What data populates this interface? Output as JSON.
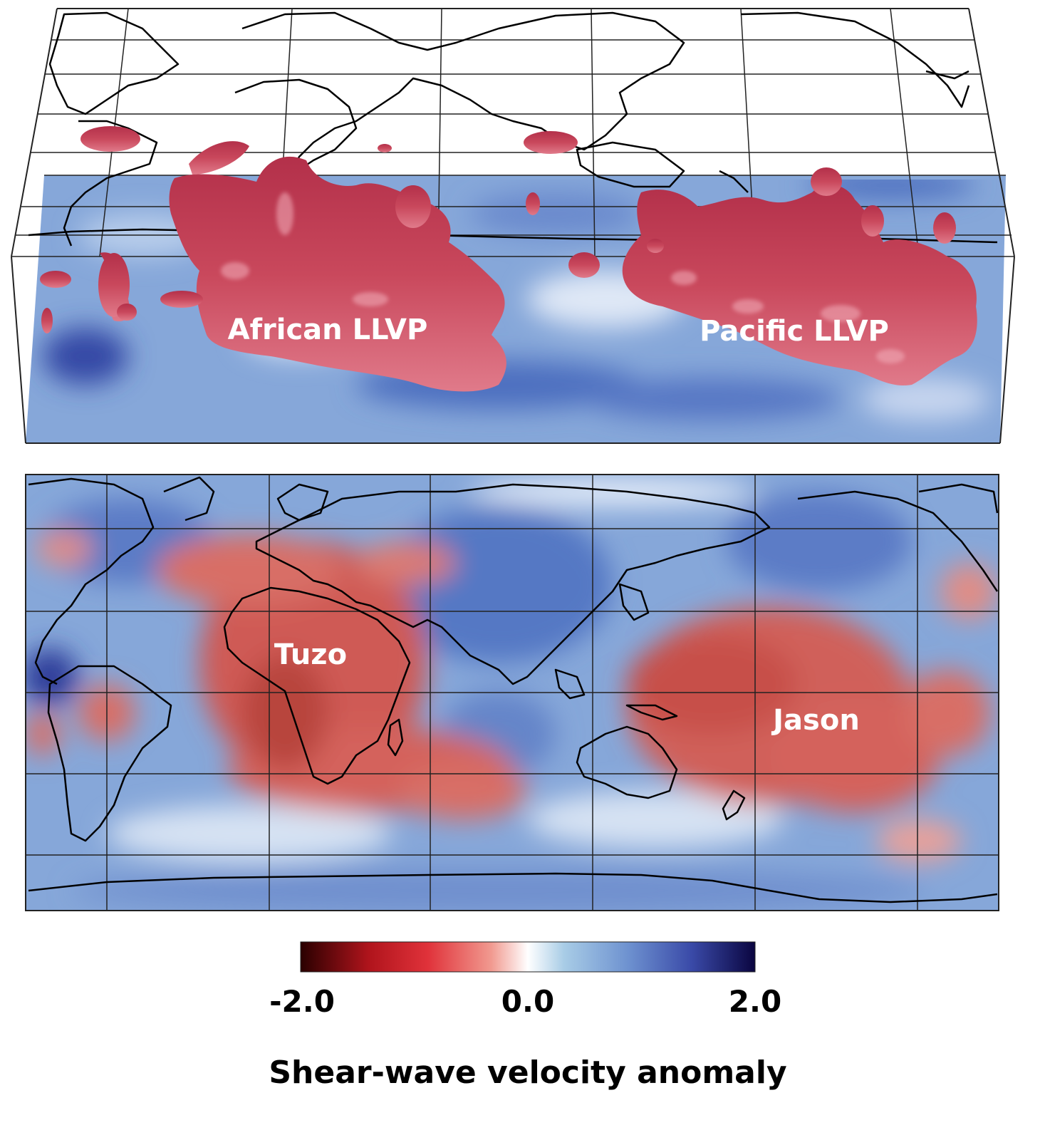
{
  "top_panel": {
    "labels": [
      "African LLVP",
      "Pacific LLVP"
    ]
  },
  "bottom_panel": {
    "labels": [
      "Tuzo",
      "Jason"
    ]
  },
  "colorbar": {
    "ticks": [
      "-2.0",
      "0.0",
      "2.0"
    ],
    "title": "Shear-wave velocity anomaly",
    "colors": [
      "#3a0000",
      "#d8252b",
      "#f08a80",
      "#ffffff",
      "#8fb6e0",
      "#4a6fc0",
      "#0c0a50"
    ]
  },
  "colors": {
    "anomaly_slow": "#c0404f",
    "anomaly_fast": "#5a7ec8",
    "background_blue": "#86a7d9",
    "coastline": "#000000"
  }
}
